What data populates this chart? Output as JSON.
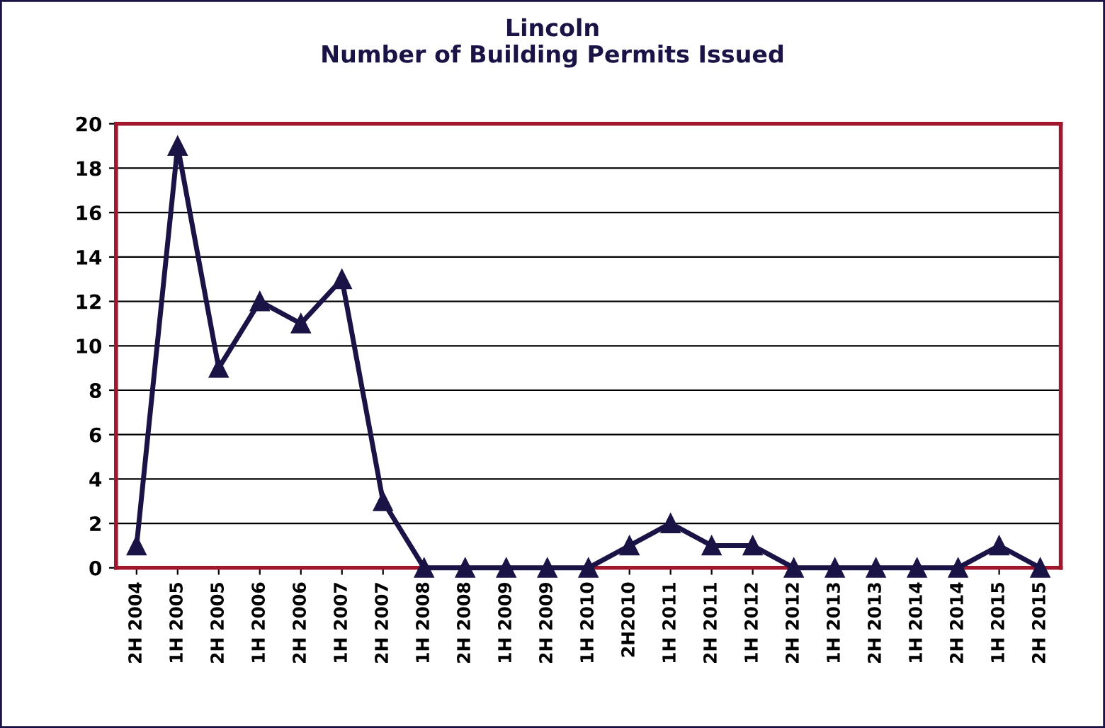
{
  "chart_data": {
    "type": "line",
    "title": "Lincoln\nNumber of Building Permits Issued",
    "categories": [
      "2H 2004",
      "1H 2005",
      "2H 2005",
      "1H 2006",
      "2H 2006",
      "1H 2007",
      "2H 2007",
      "1H 2008",
      "2H 2008",
      "1H 2009",
      "2H 2009",
      "1H 2010",
      "2H2010",
      "1H 2011",
      "2H 2011",
      "1H 2012",
      "2H 2012",
      "1H 2013",
      "2H 2013",
      "1H 2014",
      "2H 2014",
      "1H 2015",
      "2H 2015"
    ],
    "series": [
      {
        "color": "#1a1446",
        "values": [
          1,
          19,
          9,
          12,
          11,
          13,
          3,
          0,
          0,
          0,
          0,
          0,
          1,
          2,
          1,
          1,
          0,
          0,
          0,
          0,
          0,
          1,
          0
        ]
      }
    ],
    "ylim": [
      0,
      20
    ],
    "yticks": [
      0,
      2,
      4,
      6,
      8,
      10,
      12,
      14,
      16,
      18,
      20
    ],
    "grid": "y",
    "marker": "triangle",
    "line_style": "solid",
    "legend": false
  }
}
